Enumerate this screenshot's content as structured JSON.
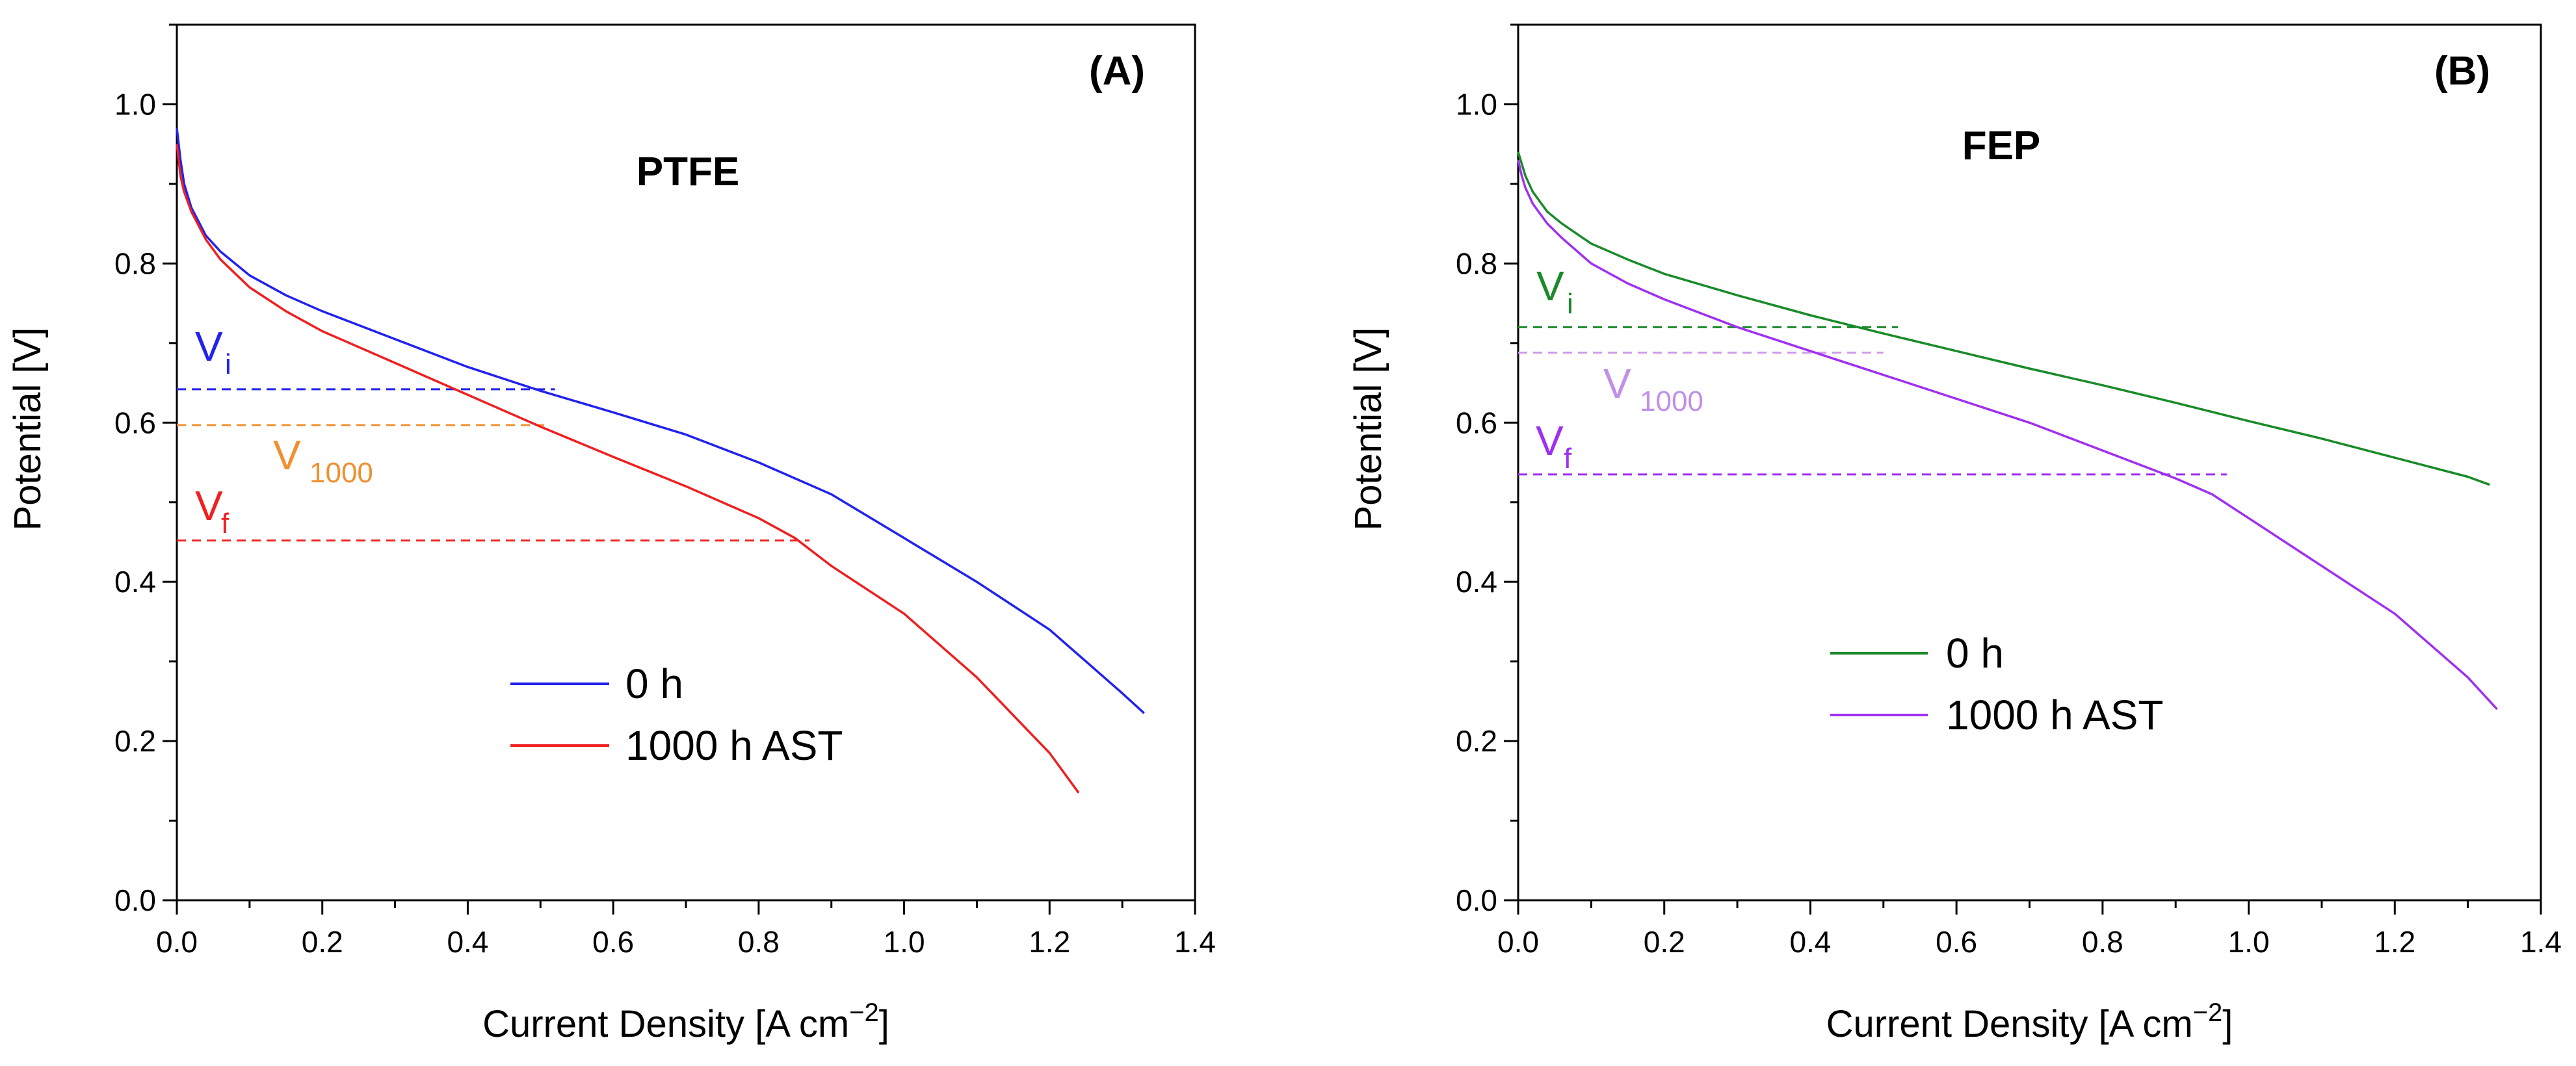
{
  "chart_data": [
    {
      "type": "line",
      "panel": "(A)",
      "title": "PTFE",
      "xlabel": "Current Density [A cm",
      "xlabel_sup": "−2",
      "xlabel_end": "]",
      "ylabel": "Potential [V]",
      "xlim": [
        0.0,
        1.4
      ],
      "ylim": [
        0.0,
        1.1
      ],
      "xticks": [
        0.0,
        0.2,
        0.4,
        0.6,
        0.8,
        1.0,
        1.2,
        1.4
      ],
      "yticks": [
        0.0,
        0.2,
        0.4,
        0.6,
        0.8,
        1.0
      ],
      "xtick_labels": [
        "0.0",
        "0.2",
        "0.4",
        "0.6",
        "0.8",
        "1.0",
        "1.2",
        "1.4"
      ],
      "ytick_labels": [
        "0.0",
        "0.2",
        "0.4",
        "0.6",
        "0.8",
        "1.0"
      ],
      "legend": "center-right",
      "series": [
        {
          "name": "0 h",
          "color": "#2222ee",
          "x": [
            0.0,
            0.005,
            0.01,
            0.02,
            0.04,
            0.06,
            0.1,
            0.15,
            0.2,
            0.3,
            0.4,
            0.5,
            0.6,
            0.7,
            0.8,
            0.9,
            1.0,
            1.1,
            1.2,
            1.25,
            1.3,
            1.33
          ],
          "y": [
            0.97,
            0.93,
            0.9,
            0.87,
            0.835,
            0.815,
            0.785,
            0.76,
            0.74,
            0.705,
            0.67,
            0.64,
            0.613,
            0.585,
            0.55,
            0.51,
            0.455,
            0.4,
            0.34,
            0.3,
            0.26,
            0.235
          ]
        },
        {
          "name": "1000 h AST",
          "color": "#ee2020",
          "x": [
            0.0,
            0.005,
            0.01,
            0.02,
            0.04,
            0.06,
            0.1,
            0.15,
            0.2,
            0.3,
            0.4,
            0.5,
            0.6,
            0.7,
            0.8,
            0.85,
            0.9,
            1.0,
            1.1,
            1.2,
            1.24
          ],
          "y": [
            0.95,
            0.91,
            0.89,
            0.865,
            0.83,
            0.805,
            0.77,
            0.74,
            0.715,
            0.675,
            0.635,
            0.595,
            0.557,
            0.52,
            0.48,
            0.455,
            0.42,
            0.36,
            0.28,
            0.185,
            0.135
          ]
        }
      ],
      "reference_lines": [
        {
          "name": "Vi",
          "color": "#2222ee",
          "y": 0.642,
          "x_end": 0.52
        },
        {
          "name": "V1000",
          "color": "#f09030",
          "y": 0.597,
          "x_end": 0.505
        },
        {
          "name": "Vf",
          "color": "#ee2020",
          "y": 0.452,
          "x_end": 0.87
        }
      ],
      "annotations": [
        {
          "main": "V",
          "sub": "i",
          "color": "#2222ee"
        },
        {
          "main": "V",
          "sub": "1000",
          "color": "#f09030"
        },
        {
          "main": "V",
          "sub": "f",
          "color": "#ee2020"
        }
      ]
    },
    {
      "type": "line",
      "panel": "(B)",
      "title": "FEP",
      "xlabel": "Current Density [A cm",
      "xlabel_sup": "−2",
      "xlabel_end": "]",
      "ylabel": "Potential [V]",
      "xlim": [
        0.0,
        1.4
      ],
      "ylim": [
        0.0,
        1.1
      ],
      "xticks": [
        0.0,
        0.2,
        0.4,
        0.6,
        0.8,
        1.0,
        1.2,
        1.4
      ],
      "yticks": [
        0.0,
        0.2,
        0.4,
        0.6,
        0.8,
        1.0
      ],
      "xtick_labels": [
        "0.0",
        "0.2",
        "0.4",
        "0.6",
        "0.8",
        "1.0",
        "1.2",
        "1.4"
      ],
      "ytick_labels": [
        "0.0",
        "0.2",
        "0.4",
        "0.6",
        "0.8",
        "1.0"
      ],
      "legend": "center",
      "series": [
        {
          "name": "0 h",
          "color": "#1a8a2a",
          "x": [
            0.0,
            0.005,
            0.01,
            0.02,
            0.04,
            0.06,
            0.1,
            0.15,
            0.2,
            0.3,
            0.4,
            0.5,
            0.6,
            0.7,
            0.8,
            0.9,
            1.0,
            1.1,
            1.2,
            1.3,
            1.33
          ],
          "y": [
            0.94,
            0.925,
            0.91,
            0.89,
            0.865,
            0.85,
            0.825,
            0.805,
            0.787,
            0.76,
            0.735,
            0.712,
            0.69,
            0.668,
            0.647,
            0.625,
            0.602,
            0.58,
            0.556,
            0.532,
            0.522
          ]
        },
        {
          "name": "1000 h AST",
          "color": "#a030f0",
          "x": [
            0.0,
            0.005,
            0.01,
            0.02,
            0.04,
            0.06,
            0.1,
            0.15,
            0.2,
            0.3,
            0.4,
            0.5,
            0.6,
            0.7,
            0.8,
            0.9,
            0.95,
            1.0,
            1.1,
            1.2,
            1.3,
            1.34
          ],
          "y": [
            0.93,
            0.91,
            0.895,
            0.875,
            0.85,
            0.832,
            0.8,
            0.775,
            0.755,
            0.72,
            0.69,
            0.66,
            0.63,
            0.6,
            0.565,
            0.53,
            0.51,
            0.48,
            0.42,
            0.36,
            0.28,
            0.24
          ]
        }
      ],
      "reference_lines": [
        {
          "name": "Vi",
          "color": "#1a8a2a",
          "y": 0.72,
          "x_end": 0.52
        },
        {
          "name": "V1000",
          "color": "#d09ae8",
          "y": 0.688,
          "x_end": 0.5
        },
        {
          "name": "Vf",
          "color": "#a030f0",
          "y": 0.535,
          "x_end": 0.97
        }
      ],
      "annotations": [
        {
          "main": "V",
          "sub": "i",
          "color": "#1a8a2a"
        },
        {
          "main": "V",
          "sub": "1000",
          "color": "#c090e8"
        },
        {
          "main": "V",
          "sub": "f",
          "color": "#a030f0"
        }
      ]
    }
  ]
}
